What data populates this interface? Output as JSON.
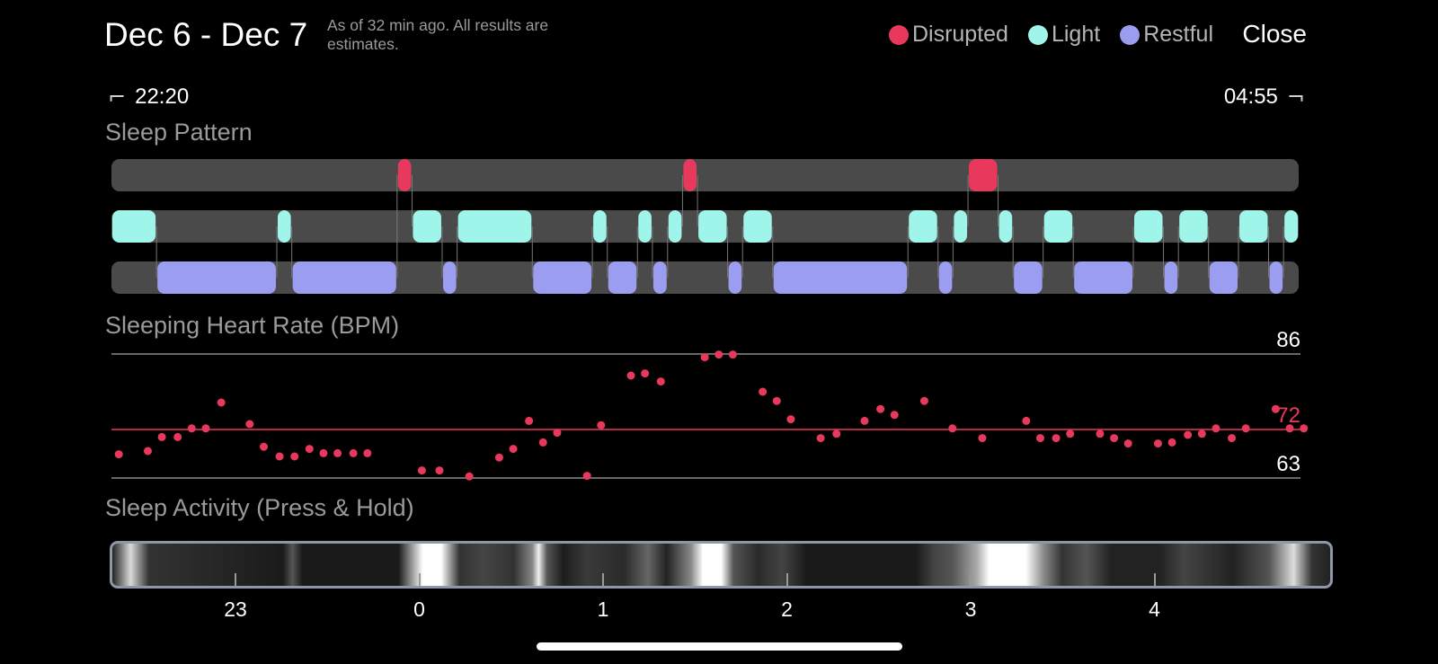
{
  "header": {
    "date_range": "Dec 6 - Dec 7",
    "as_of": "As of 32 min ago. All results are estimates.",
    "close_label": "Close"
  },
  "legend": [
    {
      "label": "Disrupted",
      "color": "#e8395c"
    },
    {
      "label": "Light",
      "color": "#a0f5ea"
    },
    {
      "label": "Restful",
      "color": "#9b9ef0"
    }
  ],
  "time_range": {
    "start": "22:20",
    "end": "04:55",
    "start_icon": "bracket-left-icon",
    "end_icon": "bracket-right-icon"
  },
  "sections": {
    "sleep_pattern": "Sleep Pattern",
    "heart_rate": "Sleeping Heart Rate (BPM)",
    "activity": "Sleep Activity (Press & Hold)"
  },
  "chart_data": [
    {
      "type": "timeline",
      "title": "Sleep Pattern",
      "x_unit": "hours",
      "x_range": [
        22.333,
        28.917
      ],
      "lanes": [
        "Disrupted",
        "Light",
        "Restful"
      ],
      "segments": [
        {
          "stage": "Light",
          "start": 22.333,
          "end": 22.583
        },
        {
          "stage": "Restful",
          "start": 22.583,
          "end": 23.25
        },
        {
          "stage": "Light",
          "start": 23.25,
          "end": 23.333
        },
        {
          "stage": "Restful",
          "start": 23.333,
          "end": 23.917
        },
        {
          "stage": "Disrupted",
          "start": 23.917,
          "end": 24.0
        },
        {
          "stage": "Light",
          "start": 24.0,
          "end": 24.167
        },
        {
          "stage": "Restful",
          "start": 24.167,
          "end": 24.25
        },
        {
          "stage": "Light",
          "start": 24.25,
          "end": 24.667
        },
        {
          "stage": "Restful",
          "start": 24.667,
          "end": 25.0
        },
        {
          "stage": "Light",
          "start": 25.0,
          "end": 25.083
        },
        {
          "stage": "Restful",
          "start": 25.083,
          "end": 25.25
        },
        {
          "stage": "Light",
          "start": 25.25,
          "end": 25.333
        },
        {
          "stage": "Restful",
          "start": 25.333,
          "end": 25.417
        },
        {
          "stage": "Light",
          "start": 25.417,
          "end": 25.5
        },
        {
          "stage": "Disrupted",
          "start": 25.5,
          "end": 25.583
        },
        {
          "stage": "Light",
          "start": 25.583,
          "end": 25.75
        },
        {
          "stage": "Restful",
          "start": 25.75,
          "end": 25.833
        },
        {
          "stage": "Light",
          "start": 25.833,
          "end": 26.0
        },
        {
          "stage": "Restful",
          "start": 26.0,
          "end": 26.75
        },
        {
          "stage": "Light",
          "start": 26.75,
          "end": 26.917
        },
        {
          "stage": "Restful",
          "start": 26.917,
          "end": 27.0
        },
        {
          "stage": "Light",
          "start": 27.0,
          "end": 27.083
        },
        {
          "stage": "Disrupted",
          "start": 27.083,
          "end": 27.25
        },
        {
          "stage": "Light",
          "start": 27.25,
          "end": 27.333
        },
        {
          "stage": "Restful",
          "start": 27.333,
          "end": 27.5
        },
        {
          "stage": "Light",
          "start": 27.5,
          "end": 27.667
        },
        {
          "stage": "Restful",
          "start": 27.667,
          "end": 28.0
        },
        {
          "stage": "Light",
          "start": 28.0,
          "end": 28.167
        },
        {
          "stage": "Restful",
          "start": 28.167,
          "end": 28.25
        },
        {
          "stage": "Light",
          "start": 28.25,
          "end": 28.417
        },
        {
          "stage": "Restful",
          "start": 28.417,
          "end": 28.583
        },
        {
          "stage": "Light",
          "start": 28.583,
          "end": 28.75
        },
        {
          "stage": "Restful",
          "start": 28.75,
          "end": 28.833
        },
        {
          "stage": "Light",
          "start": 28.833,
          "end": 28.917
        }
      ],
      "colors": {
        "Disrupted": "#e8395c",
        "Light": "#a0f5ea",
        "Restful": "#9b9ef0",
        "track": "#4a4a4a"
      }
    },
    {
      "type": "scatter",
      "title": "Sleeping Heart Rate (BPM)",
      "ylim": [
        63,
        86
      ],
      "reference_lines": [
        {
          "value": 86,
          "label": "86"
        },
        {
          "value": 72,
          "label": "72",
          "color": "#e8395c"
        },
        {
          "value": 63,
          "label": "63"
        }
      ],
      "x_range": [
        22.333,
        28.917
      ],
      "color": "#e8395c",
      "points": [
        [
          22.375,
          67.4
        ],
        [
          22.54,
          68.0
        ],
        [
          22.62,
          70.6
        ],
        [
          22.71,
          70.6
        ],
        [
          22.79,
          72.2
        ],
        [
          22.87,
          72.2
        ],
        [
          22.958,
          77.0
        ],
        [
          23.12,
          73.0
        ],
        [
          23.2,
          68.8
        ],
        [
          23.29,
          67.0
        ],
        [
          23.375,
          67.0
        ],
        [
          23.46,
          68.4
        ],
        [
          23.54,
          67.6
        ],
        [
          23.62,
          67.6
        ],
        [
          23.71,
          67.6
        ],
        [
          23.79,
          67.6
        ],
        [
          24.1,
          64.4
        ],
        [
          24.2,
          64.4
        ],
        [
          24.37,
          63.3
        ],
        [
          24.54,
          66.8
        ],
        [
          24.62,
          68.4
        ],
        [
          24.71,
          73.6
        ],
        [
          24.79,
          69.6
        ],
        [
          24.87,
          71.4
        ],
        [
          25.04,
          63.4
        ],
        [
          25.12,
          72.8
        ],
        [
          25.29,
          82.0
        ],
        [
          25.37,
          82.4
        ],
        [
          25.46,
          80.9
        ],
        [
          25.71,
          85.4
        ],
        [
          25.79,
          85.9
        ],
        [
          25.87,
          85.9
        ],
        [
          26.04,
          79.0
        ],
        [
          26.12,
          77.3
        ],
        [
          26.2,
          73.9
        ],
        [
          26.37,
          70.4
        ],
        [
          26.46,
          71.2
        ],
        [
          26.62,
          73.6
        ],
        [
          26.71,
          75.8
        ],
        [
          26.79,
          74.7
        ],
        [
          26.96,
          77.3
        ],
        [
          27.12,
          72.2
        ],
        [
          27.29,
          70.4
        ],
        [
          27.54,
          73.6
        ],
        [
          27.62,
          70.4
        ],
        [
          27.71,
          70.4
        ],
        [
          27.79,
          71.2
        ],
        [
          27.96,
          71.2
        ],
        [
          28.04,
          70.4
        ],
        [
          28.12,
          69.4
        ],
        [
          28.29,
          69.4
        ],
        [
          28.37,
          69.6
        ],
        [
          28.46,
          71.0
        ],
        [
          28.54,
          71.2
        ],
        [
          28.62,
          72.2
        ],
        [
          28.71,
          70.4
        ],
        [
          28.79,
          72.2
        ],
        [
          28.96,
          75.8
        ],
        [
          29.04,
          72.2
        ],
        [
          29.12,
          72.2
        ]
      ]
    },
    {
      "type": "heatmap",
      "title": "Sleep Activity (Press & Hold)",
      "x_tick_labels": [
        "23",
        "0",
        "1",
        "2",
        "3",
        "4"
      ],
      "x_tick_values": [
        23,
        24,
        25,
        26,
        27,
        28
      ]
    }
  ]
}
